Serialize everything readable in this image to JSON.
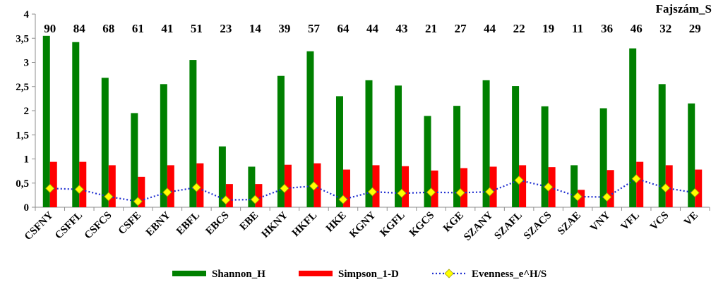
{
  "chart_data": {
    "type": "bar",
    "categories": [
      "CSFNY",
      "CSFFL",
      "CSFCS",
      "CSFE",
      "EBNY",
      "EBFL",
      "EBCS",
      "EBE",
      "HKNY",
      "HKFL",
      "HKE",
      "KGNY",
      "KGFL",
      "KGCS",
      "KGE",
      "SZANY",
      "SZAFL",
      "SZACS",
      "SZAE",
      "VNY",
      "VFL",
      "VCS",
      "VE"
    ],
    "species_title": "Fajszám_S",
    "species_counts": [
      90,
      84,
      68,
      61,
      41,
      51,
      23,
      14,
      39,
      57,
      64,
      44,
      43,
      21,
      27,
      44,
      22,
      19,
      11,
      36,
      46,
      32,
      29
    ],
    "ylim": [
      0,
      4
    ],
    "yticks": [
      "0",
      "0,5",
      "1",
      "1,5",
      "2",
      "2,5",
      "3",
      "3,5",
      "4"
    ],
    "ytick_values": [
      0,
      0.5,
      1,
      1.5,
      2,
      2.5,
      3,
      3.5,
      4
    ],
    "series": [
      {
        "name": "Shannon_H",
        "type": "bar",
        "color": "#008000",
        "values": [
          3.55,
          3.42,
          2.68,
          1.95,
          2.55,
          3.05,
          1.26,
          0.84,
          2.72,
          3.23,
          2.3,
          2.63,
          2.52,
          1.89,
          2.1,
          2.63,
          2.51,
          2.09,
          0.87,
          2.05,
          3.29,
          2.55,
          2.15
        ]
      },
      {
        "name": "Simpson_1-D",
        "type": "bar",
        "color": "#ff0000",
        "values": [
          0.94,
          0.94,
          0.87,
          0.63,
          0.87,
          0.91,
          0.48,
          0.48,
          0.88,
          0.91,
          0.78,
          0.87,
          0.85,
          0.76,
          0.81,
          0.84,
          0.87,
          0.83,
          0.36,
          0.77,
          0.94,
          0.87,
          0.78
        ]
      },
      {
        "name": "Evenness_e^H/S",
        "type": "line",
        "color": "#1f2fd0",
        "marker_color": "#ffff00",
        "values": [
          0.39,
          0.37,
          0.22,
          0.12,
          0.31,
          0.41,
          0.15,
          0.16,
          0.39,
          0.44,
          0.16,
          0.32,
          0.29,
          0.31,
          0.3,
          0.32,
          0.56,
          0.42,
          0.22,
          0.21,
          0.59,
          0.4,
          0.3
        ]
      }
    ],
    "grid": false,
    "legend_position": "bottom"
  }
}
